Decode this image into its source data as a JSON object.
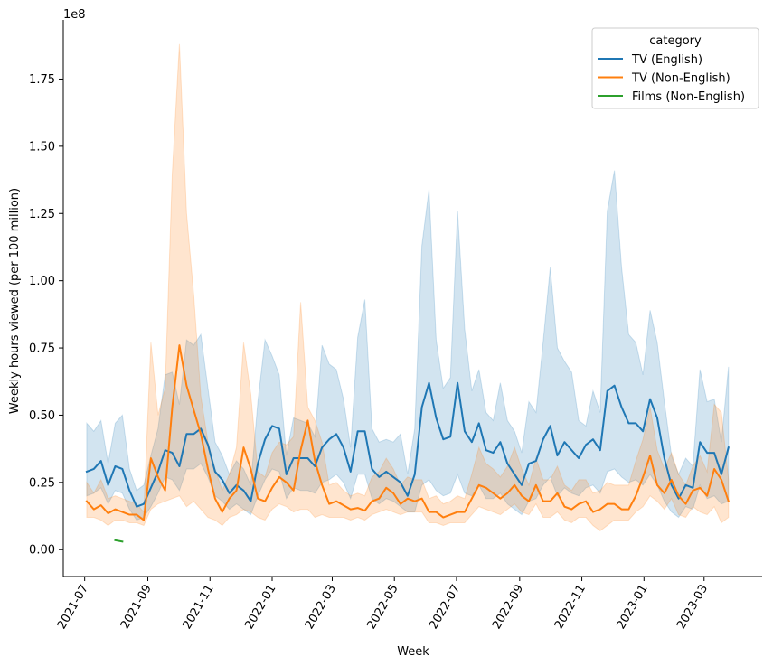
{
  "chart_data": {
    "type": "line",
    "title": "",
    "xlabel": "Week",
    "ylabel": "Weekly hours viewed (per 100 million)",
    "y_offset_label": "1e8",
    "y_scale": 100000000,
    "ylim": [
      -0.1,
      1.97
    ],
    "xlim_days": [
      -21,
      665
    ],
    "x_ticks": [
      {
        "label": "2021-07",
        "day": 0
      },
      {
        "label": "2021-09",
        "day": 62
      },
      {
        "label": "2021-11",
        "day": 123
      },
      {
        "label": "2022-01",
        "day": 184
      },
      {
        "label": "2022-03",
        "day": 243
      },
      {
        "label": "2022-05",
        "day": 304
      },
      {
        "label": "2022-07",
        "day": 365
      },
      {
        "label": "2022-09",
        "day": 427
      },
      {
        "label": "2022-11",
        "day": 488
      },
      {
        "label": "2023-01",
        "day": 549
      },
      {
        "label": "2023-03",
        "day": 608
      }
    ],
    "y_ticks": [
      {
        "label": "0.00",
        "value": 0
      },
      {
        "label": "0.25",
        "value": 0.25
      },
      {
        "label": "0.50",
        "value": 0.5
      },
      {
        "label": "0.75",
        "value": 0.75
      },
      {
        "label": "1.00",
        "value": 1.0
      },
      {
        "label": "1.25",
        "value": 1.25
      },
      {
        "label": "1.50",
        "value": 1.5
      },
      {
        "label": "1.75",
        "value": 1.75
      }
    ],
    "legend": {
      "title": "category",
      "position": "top-right"
    },
    "series": [
      {
        "name": "TV (English)",
        "color": "#1f77b4",
        "x_start_day": 2,
        "x_step_days": 7,
        "values": [
          0.29,
          0.3,
          0.33,
          0.24,
          0.31,
          0.3,
          0.22,
          0.16,
          0.17,
          0.23,
          0.29,
          0.37,
          0.36,
          0.31,
          0.43,
          0.43,
          0.45,
          0.39,
          0.29,
          0.26,
          0.21,
          0.24,
          0.22,
          0.18,
          0.32,
          0.41,
          0.46,
          0.45,
          0.28,
          0.34,
          0.34,
          0.34,
          0.31,
          0.38,
          0.41,
          0.43,
          0.38,
          0.29,
          0.44,
          0.44,
          0.3,
          0.27,
          0.29,
          0.27,
          0.25,
          0.2,
          0.28,
          0.53,
          0.62,
          0.49,
          0.41,
          0.42,
          0.62,
          0.44,
          0.4,
          0.47,
          0.37,
          0.36,
          0.4,
          0.32,
          0.28,
          0.24,
          0.32,
          0.33,
          0.41,
          0.46,
          0.35,
          0.4,
          0.37,
          0.34,
          0.39,
          0.41,
          0.37,
          0.59,
          0.61,
          0.53,
          0.47,
          0.47,
          0.44,
          0.56,
          0.49,
          0.34,
          0.24,
          0.19,
          0.24,
          0.23,
          0.4,
          0.36,
          0.36,
          0.28,
          0.38
        ],
        "ci_lower": [
          0.2,
          0.21,
          0.23,
          0.17,
          0.22,
          0.21,
          0.15,
          0.11,
          0.12,
          0.16,
          0.21,
          0.27,
          0.26,
          0.22,
          0.3,
          0.3,
          0.32,
          0.27,
          0.2,
          0.18,
          0.15,
          0.17,
          0.15,
          0.13,
          0.2,
          0.26,
          0.3,
          0.29,
          0.19,
          0.23,
          0.22,
          0.22,
          0.21,
          0.25,
          0.26,
          0.28,
          0.25,
          0.19,
          0.28,
          0.28,
          0.19,
          0.17,
          0.19,
          0.18,
          0.16,
          0.14,
          0.14,
          0.24,
          0.26,
          0.22,
          0.2,
          0.21,
          0.28,
          0.21,
          0.2,
          0.24,
          0.19,
          0.19,
          0.21,
          0.17,
          0.15,
          0.13,
          0.18,
          0.19,
          0.24,
          0.27,
          0.2,
          0.23,
          0.21,
          0.2,
          0.23,
          0.24,
          0.21,
          0.29,
          0.3,
          0.27,
          0.25,
          0.26,
          0.24,
          0.28,
          0.24,
          0.18,
          0.14,
          0.12,
          0.16,
          0.15,
          0.24,
          0.19,
          0.2,
          0.17,
          0.18
        ],
        "ci_upper": [
          0.47,
          0.44,
          0.48,
          0.32,
          0.47,
          0.5,
          0.3,
          0.22,
          0.24,
          0.35,
          0.45,
          0.65,
          0.66,
          0.54,
          0.78,
          0.76,
          0.8,
          0.6,
          0.4,
          0.35,
          0.28,
          0.33,
          0.3,
          0.24,
          0.55,
          0.78,
          0.72,
          0.65,
          0.35,
          0.49,
          0.48,
          0.47,
          0.42,
          0.76,
          0.69,
          0.67,
          0.56,
          0.38,
          0.79,
          0.93,
          0.45,
          0.4,
          0.41,
          0.4,
          0.43,
          0.28,
          0.45,
          1.13,
          1.34,
          0.78,
          0.6,
          0.64,
          1.26,
          0.82,
          0.59,
          0.67,
          0.51,
          0.48,
          0.62,
          0.48,
          0.44,
          0.36,
          0.55,
          0.51,
          0.77,
          1.05,
          0.75,
          0.7,
          0.66,
          0.48,
          0.46,
          0.59,
          0.51,
          1.26,
          1.41,
          1.05,
          0.8,
          0.77,
          0.65,
          0.89,
          0.77,
          0.55,
          0.35,
          0.28,
          0.34,
          0.31,
          0.67,
          0.55,
          0.56,
          0.4,
          0.68
        ]
      },
      {
        "name": "TV (Non-English)",
        "color": "#ff7f0e",
        "x_start_day": 2,
        "x_step_days": 7,
        "values": [
          0.18,
          0.15,
          0.165,
          0.135,
          0.15,
          0.14,
          0.13,
          0.13,
          0.11,
          0.34,
          0.27,
          0.22,
          0.53,
          0.76,
          0.61,
          0.52,
          0.43,
          0.3,
          0.19,
          0.14,
          0.19,
          0.22,
          0.38,
          0.3,
          0.19,
          0.18,
          0.23,
          0.27,
          0.25,
          0.22,
          0.37,
          0.48,
          0.33,
          0.24,
          0.17,
          0.18,
          0.165,
          0.15,
          0.155,
          0.145,
          0.18,
          0.19,
          0.23,
          0.21,
          0.17,
          0.19,
          0.18,
          0.19,
          0.14,
          0.14,
          0.12,
          0.13,
          0.14,
          0.14,
          0.19,
          0.24,
          0.23,
          0.21,
          0.19,
          0.21,
          0.24,
          0.2,
          0.18,
          0.24,
          0.18,
          0.18,
          0.21,
          0.16,
          0.15,
          0.17,
          0.18,
          0.14,
          0.15,
          0.17,
          0.17,
          0.15,
          0.15,
          0.2,
          0.27,
          0.35,
          0.24,
          0.21,
          0.26,
          0.2,
          0.17,
          0.22,
          0.23,
          0.2,
          0.3,
          0.26,
          0.18
        ],
        "ci_lower": [
          0.12,
          0.12,
          0.11,
          0.09,
          0.11,
          0.11,
          0.1,
          0.1,
          0.09,
          0.15,
          0.17,
          0.18,
          0.19,
          0.2,
          0.16,
          0.18,
          0.15,
          0.12,
          0.11,
          0.09,
          0.12,
          0.13,
          0.15,
          0.14,
          0.12,
          0.11,
          0.15,
          0.17,
          0.16,
          0.14,
          0.15,
          0.15,
          0.12,
          0.13,
          0.12,
          0.12,
          0.12,
          0.11,
          0.12,
          0.11,
          0.13,
          0.14,
          0.15,
          0.14,
          0.13,
          0.14,
          0.14,
          0.14,
          0.1,
          0.1,
          0.09,
          0.1,
          0.1,
          0.1,
          0.13,
          0.16,
          0.15,
          0.14,
          0.13,
          0.15,
          0.17,
          0.14,
          0.13,
          0.17,
          0.12,
          0.12,
          0.14,
          0.11,
          0.1,
          0.12,
          0.12,
          0.09,
          0.07,
          0.09,
          0.11,
          0.11,
          0.11,
          0.14,
          0.16,
          0.2,
          0.18,
          0.15,
          0.19,
          0.13,
          0.12,
          0.16,
          0.14,
          0.13,
          0.16,
          0.1,
          0.12
        ],
        "ci_upper": [
          0.25,
          0.21,
          0.26,
          0.19,
          0.2,
          0.19,
          0.18,
          0.17,
          0.14,
          0.77,
          0.5,
          0.6,
          1.4,
          1.88,
          1.25,
          0.95,
          0.57,
          0.4,
          0.3,
          0.22,
          0.28,
          0.38,
          0.77,
          0.58,
          0.29,
          0.27,
          0.36,
          0.4,
          0.39,
          0.42,
          0.92,
          0.53,
          0.48,
          0.4,
          0.24,
          0.25,
          0.22,
          0.2,
          0.21,
          0.2,
          0.27,
          0.29,
          0.34,
          0.3,
          0.24,
          0.27,
          0.26,
          0.26,
          0.19,
          0.2,
          0.17,
          0.18,
          0.2,
          0.19,
          0.28,
          0.38,
          0.32,
          0.3,
          0.27,
          0.31,
          0.38,
          0.3,
          0.24,
          0.34,
          0.26,
          0.26,
          0.31,
          0.24,
          0.22,
          0.26,
          0.26,
          0.21,
          0.22,
          0.25,
          0.24,
          0.24,
          0.24,
          0.33,
          0.41,
          0.53,
          0.37,
          0.3,
          0.36,
          0.28,
          0.24,
          0.31,
          0.35,
          0.29,
          0.54,
          0.51,
          0.26
        ]
      },
      {
        "name": "Films (Non-English)",
        "color": "#2ca02c",
        "x_start_day": 30,
        "x_step_days": 7,
        "values": [
          0.035,
          0.03
        ]
      }
    ]
  }
}
